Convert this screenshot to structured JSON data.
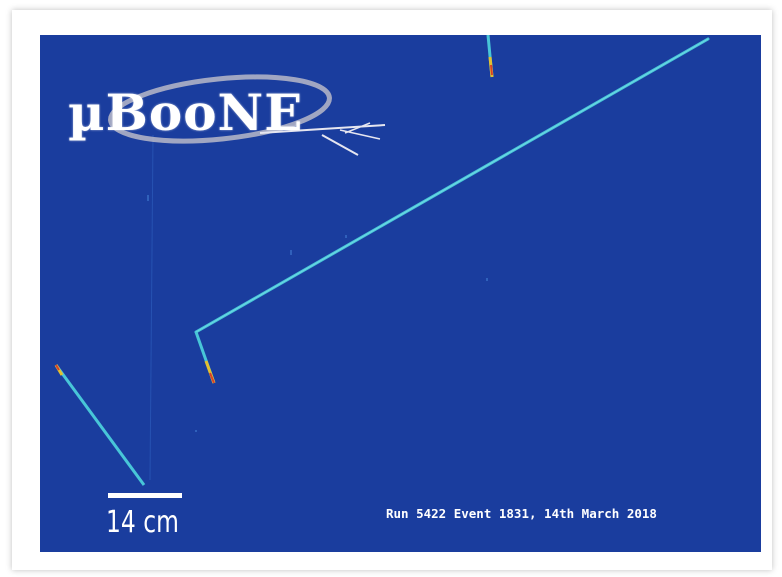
{
  "logo": {
    "text": "µBooNE",
    "icon": "microboone-logo-icon"
  },
  "scale_bar": {
    "label": "14 cm"
  },
  "run_info": {
    "text": "Run 5422 Event 1831, 14th March 2018"
  },
  "colors": {
    "background": "#1a3d9e",
    "track_main": "#48c6d8",
    "track_hot": "#e2c030",
    "track_peak": "#d8402a",
    "text": "#ffffff"
  }
}
